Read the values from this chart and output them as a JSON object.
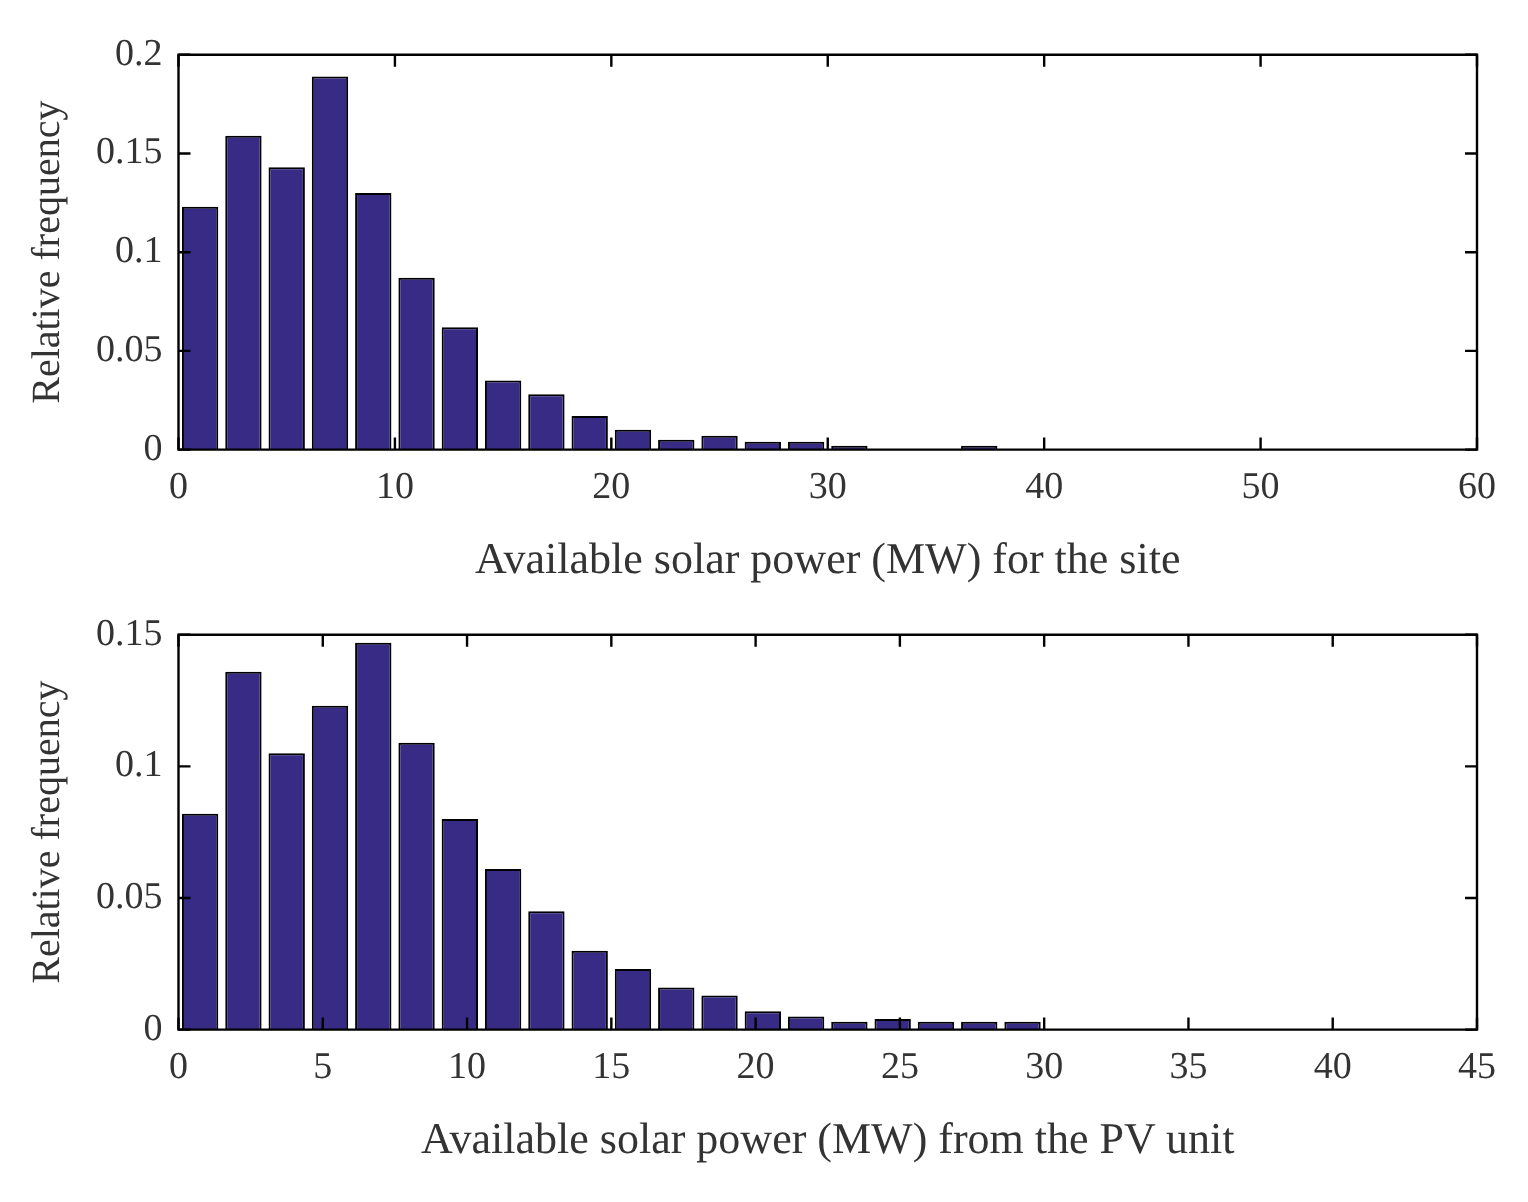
{
  "chart_data": [
    {
      "type": "histogram",
      "xlabel": "Available solar power (MW) for the site",
      "ylabel": "Relative frequency",
      "bins": [
        0,
        2,
        4,
        6,
        8,
        10,
        12,
        14,
        16,
        18,
        20,
        22,
        24,
        26,
        28,
        30,
        32,
        34,
        36,
        38,
        40,
        42,
        44,
        46,
        48,
        50,
        52,
        54,
        56,
        58,
        60
      ],
      "values": [
        0.123,
        0.159,
        0.143,
        0.189,
        0.13,
        0.087,
        0.062,
        0.035,
        0.028,
        0.017,
        0.01,
        0.005,
        0.007,
        0.004,
        0.004,
        0.002,
        0,
        0,
        0.002,
        0,
        0,
        0,
        0,
        0,
        0,
        0,
        0,
        0,
        0,
        0
      ],
      "color": "#372b85",
      "xlim": [
        0,
        60
      ],
      "xticks": [
        0,
        10,
        20,
        30,
        40,
        50,
        60
      ],
      "ylim": [
        0,
        0.2
      ],
      "yticks": [
        0,
        0.05,
        0.1,
        0.15,
        0.2
      ],
      "grid": false,
      "legend": false
    },
    {
      "type": "histogram",
      "xlabel": "Available solar power (MW) from the PV unit",
      "ylabel": "Relative frequency",
      "bins": [
        0,
        1.5,
        3,
        4.5,
        6,
        7.5,
        9,
        10.5,
        12,
        13.5,
        15,
        16.5,
        18,
        19.5,
        21,
        22.5,
        24,
        25.5,
        27,
        28.5,
        30,
        31.5,
        33,
        34.5,
        36,
        37.5,
        39,
        40.5,
        42,
        43.5,
        45
      ],
      "values": [
        0.082,
        0.136,
        0.105,
        0.123,
        0.147,
        0.109,
        0.08,
        0.061,
        0.045,
        0.03,
        0.023,
        0.016,
        0.013,
        0.007,
        0.005,
        0.003,
        0.004,
        0.003,
        0.003,
        0.003,
        0,
        0,
        0,
        0,
        0,
        0,
        0,
        0,
        0,
        0
      ],
      "color": "#372b85",
      "xlim": [
        0,
        45
      ],
      "xticks": [
        0,
        5,
        10,
        15,
        20,
        25,
        30,
        35,
        40,
        45
      ],
      "ylim": [
        0,
        0.15
      ],
      "yticks": [
        0,
        0.05,
        0.1,
        0.15
      ],
      "grid": false,
      "legend": false
    }
  ]
}
